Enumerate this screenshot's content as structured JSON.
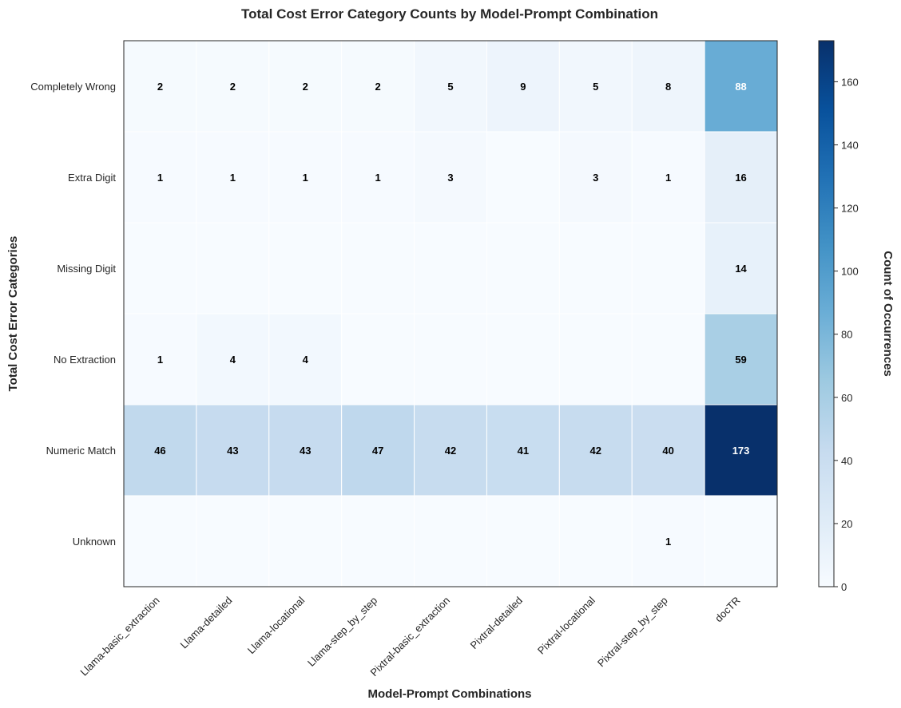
{
  "chart_data": {
    "type": "heatmap",
    "title": "Total Cost Error Category Counts by Model-Prompt Combination",
    "xlabel": "Model-Prompt Combinations",
    "ylabel": "Total Cost Error Categories",
    "colorbar_label": "Count of Occurrences",
    "colormap": "Blues",
    "vmin": 0,
    "vmax": 173,
    "colorbar_ticks": [
      0,
      20,
      40,
      60,
      80,
      100,
      120,
      140,
      160
    ],
    "x_categories": [
      "Llama-basic_extraction",
      "Llama-detailed",
      "Llama-locational",
      "Llama-step_by_step",
      "Pixtral-basic_extraction",
      "Pixtral-detailed",
      "Pixtral-locational",
      "Pixtral-step_by_step",
      "docTR"
    ],
    "y_categories": [
      "Completely Wrong",
      "Extra Digit",
      "Missing Digit",
      "No Extraction",
      "Numeric Match",
      "Unknown"
    ],
    "values": [
      [
        2,
        2,
        2,
        2,
        5,
        9,
        5,
        8,
        88
      ],
      [
        1,
        1,
        1,
        1,
        3,
        0,
        3,
        1,
        16
      ],
      [
        0,
        0,
        0,
        0,
        0,
        0,
        0,
        0,
        14
      ],
      [
        1,
        4,
        4,
        0,
        0,
        0,
        0,
        0,
        59
      ],
      [
        46,
        43,
        43,
        47,
        42,
        41,
        42,
        40,
        173
      ],
      [
        0,
        0,
        0,
        0,
        0,
        0,
        0,
        1,
        0
      ]
    ]
  }
}
